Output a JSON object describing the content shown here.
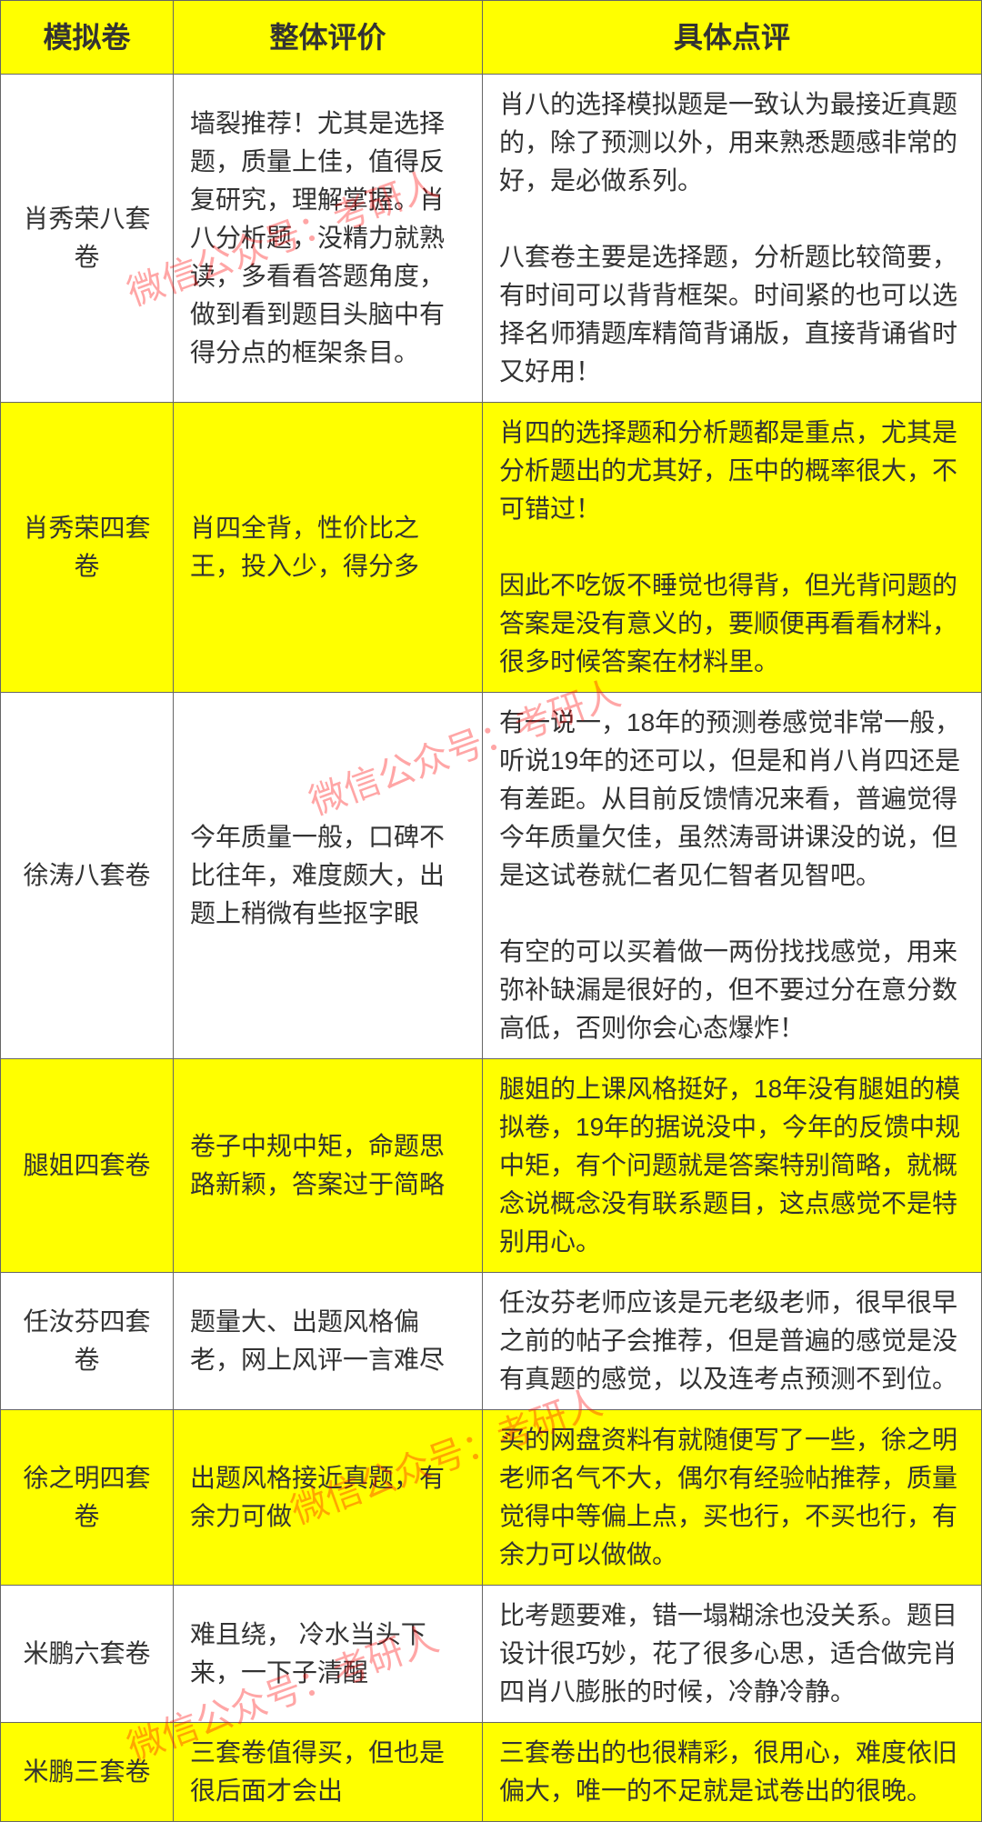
{
  "table": {
    "headers": {
      "col1": "模拟卷",
      "col2": "整体评价",
      "col3": "具体点评"
    },
    "rows": [
      {
        "name": "肖秀荣八套卷",
        "overall": "墙裂推荐！尤其是选择题，质量上佳，值得反复研究，理解掌握。肖八分析题，没精力就熟读，多看看答题角度，做到看到题目头脑中有得分点的框架条目。",
        "detail": "肖八的选择模拟题是一致认为最接近真题的，除了预测以外，用来熟悉题感非常的好，是必做系列。\n\n八套卷主要是选择题，分析题比较简要，有时间可以背背框架。时间紧的也可以选择名师猜题库精简背诵版，直接背诵省时又好用！",
        "highlight": false
      },
      {
        "name": "肖秀荣四套卷",
        "overall": "肖四全背，性价比之王，投入少，得分多",
        "detail": "肖四的选择题和分析题都是重点，尤其是分析题出的尤其好，压中的概率很大，不可错过！\n\n因此不吃饭不睡觉也得背，但光背问题的答案是没有意义的，要顺便再看看材料，很多时候答案在材料里。",
        "highlight": true
      },
      {
        "name": "徐涛八套卷",
        "overall": "今年质量一般，口碑不比往年，难度颇大，出题上稍微有些抠字眼",
        "detail": "有一说一，18年的预测卷感觉非常一般，听说19年的还可以，但是和肖八肖四还是有差距。从目前反馈情况来看，普遍觉得今年质量欠佳，虽然涛哥讲课没的说，但是这试卷就仁者见仁智者见智吧。\n\n有空的可以买着做一两份找找感觉，用来弥补缺漏是很好的，但不要过分在意分数高低，否则你会心态爆炸！",
        "highlight": false
      },
      {
        "name": "腿姐四套卷",
        "overall": "卷子中规中矩，命题思路新颖，答案过于简略",
        "detail": "腿姐的上课风格挺好，18年没有腿姐的模拟卷，19年的据说没中，今年的反馈中规中矩，有个问题就是答案特别简略，就概念说概念没有联系题目，这点感觉不是特别用心。",
        "highlight": true
      },
      {
        "name": "任汝芬四套卷",
        "overall": "题量大、出题风格偏老，网上风评一言难尽",
        "detail": "任汝芬老师应该是元老级老师，很早很早之前的帖子会推荐，但是普遍的感觉是没有真题的感觉，以及连考点预测不到位。",
        "highlight": false
      },
      {
        "name": "徐之明四套卷",
        "overall": "出题风格接近真题，有余力可做",
        "detail": "买的网盘资料有就随便写了一些，徐之明老师名气不大，偶尔有经验帖推荐，质量觉得中等偏上点，买也行，不买也行，有余力可以做做。",
        "highlight": true
      },
      {
        "name": "米鹏六套卷",
        "overall": "难且绕， 冷水当头下来，一下子清醒",
        "detail": "比考题要难，错一塌糊涂也没关系。题目设计很巧妙，花了很多心思，适合做完肖四肖八膨胀的时候，冷静冷静。",
        "highlight": false
      },
      {
        "name": "米鹏三套卷",
        "overall": "三套卷值得买，但也是很后面才会出",
        "detail": "三套卷出的也很精彩，很用心，难度依旧偏大，唯一的不足就是试卷出的很晚。",
        "highlight": true
      }
    ],
    "column_widths": {
      "col1": 190,
      "col2": 340,
      "col3": 550
    },
    "colors": {
      "header_bg": "#ffff00",
      "header_text": "#ff0000",
      "highlight_bg": "#ffff00",
      "border": "#666666",
      "body_text": "#333333",
      "watermark": "rgba(255,0,0,0.35)"
    },
    "typography": {
      "header_fontsize": 32,
      "body_fontsize": 28,
      "watermark_fontsize": 40
    }
  },
  "watermarks": {
    "text": "微信公众号：考研人"
  }
}
